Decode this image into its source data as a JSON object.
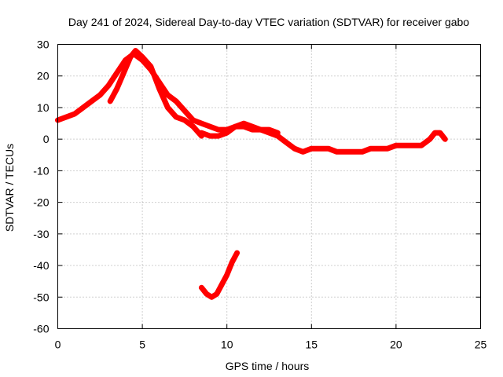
{
  "chart_data": {
    "type": "line",
    "title": "Day 241 of 2024, Sidereal Day-to-day VTEC variation (SDTVAR) for receiver gabo",
    "xlabel": "GPS time / hours",
    "ylabel": "SDTVAR / TECUs",
    "xlim": [
      0,
      25
    ],
    "ylim": [
      -60,
      30
    ],
    "xticks": [
      0,
      5,
      10,
      15,
      20,
      25
    ],
    "yticks": [
      30,
      20,
      10,
      0,
      -10,
      -20,
      -30,
      -40,
      -50,
      -60
    ],
    "grid": true,
    "series": [
      {
        "name": "main-track",
        "color": "#ff0000",
        "x": [
          0.0,
          0.5,
          1.0,
          1.5,
          2.0,
          2.5,
          3.0,
          3.5,
          4.0,
          4.5,
          5.0,
          5.5,
          6.0,
          6.5,
          7.0,
          7.5,
          8.0,
          8.5,
          9.0,
          9.5,
          10.0,
          10.5,
          11.0,
          11.5,
          12.0,
          12.5,
          13.0,
          13.5,
          14.0,
          14.5,
          15.0,
          15.5,
          16.0,
          16.5,
          17.0,
          17.5,
          18.0,
          18.5,
          19.0,
          19.5,
          20.0,
          20.5,
          21.0,
          21.5,
          22.0,
          22.3,
          22.6,
          22.9
        ],
        "y": [
          6,
          7,
          8,
          10,
          12,
          14,
          17,
          21,
          25,
          27,
          25,
          22,
          18,
          14,
          12,
          9,
          6,
          5,
          4,
          3,
          3,
          4,
          4,
          3,
          3,
          2,
          1,
          -1,
          -3,
          -4,
          -3,
          -3,
          -3,
          -4,
          -4,
          -4,
          -4,
          -3,
          -3,
          -3,
          -2,
          -2,
          -2,
          -2,
          0,
          2,
          2,
          0
        ]
      },
      {
        "name": "overlap-track",
        "color": "#ff0000",
        "x": [
          3.1,
          3.5,
          3.9,
          4.3,
          4.6,
          5.0,
          5.5,
          6.0,
          6.5,
          7.0,
          7.5,
          8.0,
          8.5
        ],
        "y": [
          12,
          16,
          21,
          26,
          28,
          26,
          23,
          16,
          10,
          7,
          6,
          4,
          1
        ]
      },
      {
        "name": "arc-track",
        "color": "#ff0000",
        "x": [
          8.5,
          9.0,
          9.5,
          10.0,
          10.5,
          11.0,
          11.5,
          12.0,
          12.5,
          13.0
        ],
        "y": [
          2,
          1,
          1,
          2,
          4,
          5,
          4,
          3,
          3,
          2
        ]
      },
      {
        "name": "negative-pass",
        "color": "#ff0000",
        "x": [
          8.5,
          8.8,
          9.1,
          9.4,
          9.7,
          10.0,
          10.3,
          10.6
        ],
        "y": [
          -47,
          -49,
          -50,
          -49,
          -46,
          -43,
          -39,
          -36
        ]
      }
    ]
  }
}
